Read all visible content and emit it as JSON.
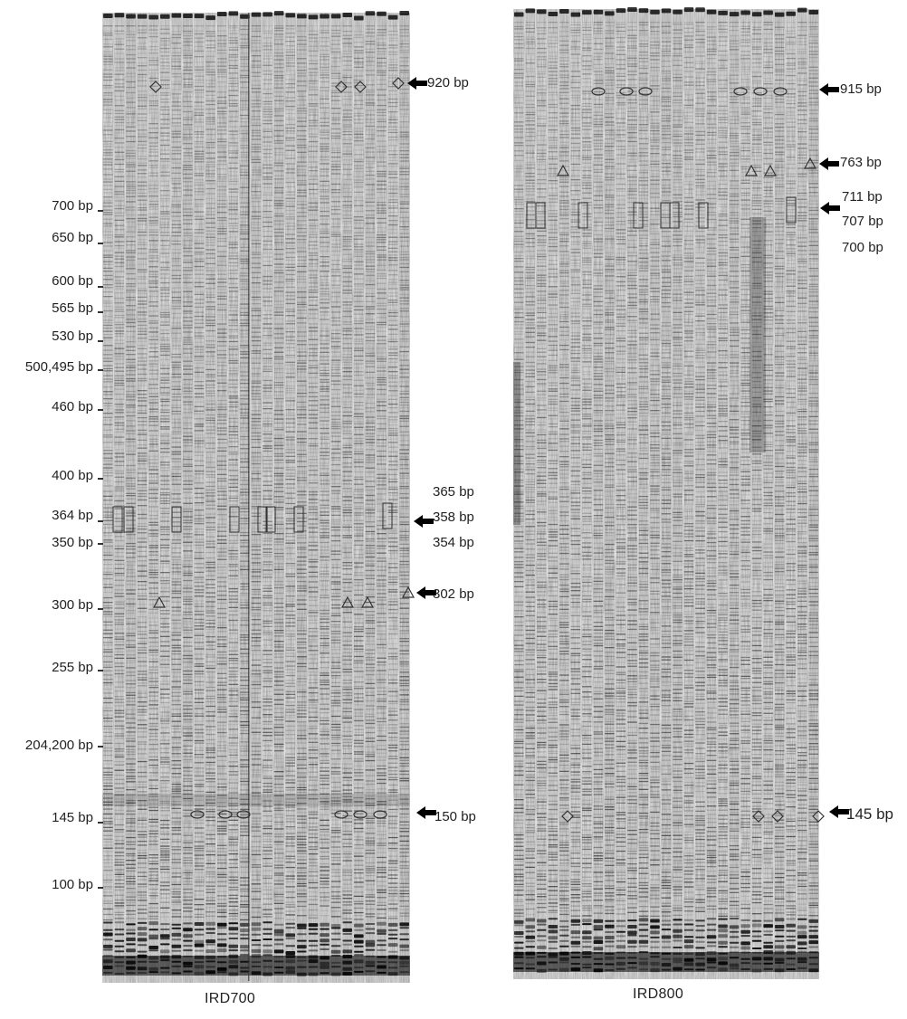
{
  "gels": [
    {
      "id": "ird700",
      "title": "IRD700",
      "ladder_labels": [
        "700 bp",
        "650 bp",
        "600 bp",
        "565 bp",
        "530 bp",
        "500,495 bp",
        "460 bp",
        "400 bp",
        "364 bp",
        "350 bp",
        "300 bp",
        "255 bp",
        "204,200 bp",
        "145 bp",
        "100 bp"
      ],
      "marker_labels": [
        "920 bp",
        "365 bp",
        "358 bp",
        "354 bp",
        "302 bp",
        "150 bp"
      ]
    },
    {
      "id": "ird800",
      "title": "IRD800",
      "marker_labels": [
        "915 bp",
        "763 bp",
        "711 bp",
        "707 bp",
        "700 bp",
        "145 bp"
      ]
    }
  ]
}
